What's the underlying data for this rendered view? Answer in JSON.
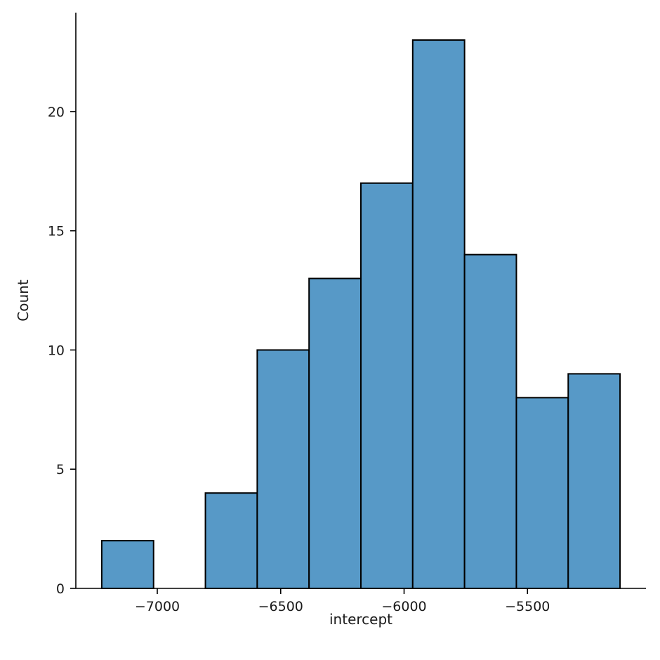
{
  "chart_data": {
    "type": "bar",
    "title": "",
    "xlabel": "intercept",
    "ylabel": "Count",
    "bins": [
      {
        "start": -7225,
        "end": -7015,
        "count": 2
      },
      {
        "start": -7015,
        "end": -6805,
        "count": 0
      },
      {
        "start": -6805,
        "end": -6595,
        "count": 4
      },
      {
        "start": -6595,
        "end": -6385,
        "count": 10
      },
      {
        "start": -6385,
        "end": -6175,
        "count": 13
      },
      {
        "start": -6175,
        "end": -5965,
        "count": 17
      },
      {
        "start": -5965,
        "end": -5755,
        "count": 23
      },
      {
        "start": -5755,
        "end": -5545,
        "count": 14
      },
      {
        "start": -5545,
        "end": -5335,
        "count": 8
      },
      {
        "start": -5335,
        "end": -5125,
        "count": 9
      }
    ],
    "xlim": [
      -7330,
      -5020
    ],
    "ylim": [
      0,
      24.15
    ],
    "x_ticks": [
      -7000,
      -6500,
      -6000,
      -5500
    ],
    "x_tick_labels": [
      "−7000",
      "−6500",
      "−6000",
      "−5500"
    ],
    "y_ticks": [
      0,
      5,
      10,
      15,
      20
    ],
    "y_tick_labels": [
      "0",
      "5",
      "10",
      "15",
      "20"
    ],
    "grid": false,
    "legend": "none",
    "colors": {
      "bar_fill": "#5799c7",
      "bar_edge": "#000000"
    }
  }
}
